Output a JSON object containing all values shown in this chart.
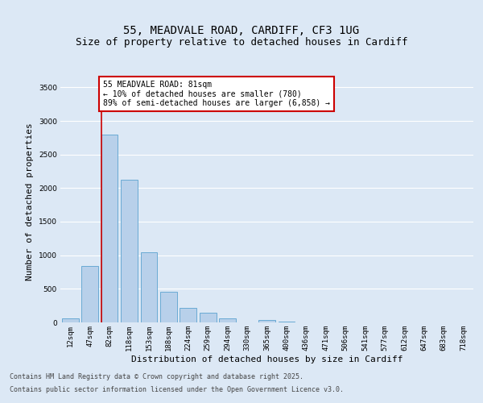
{
  "title_line1": "55, MEADVALE ROAD, CARDIFF, CF3 1UG",
  "title_line2": "Size of property relative to detached houses in Cardiff",
  "xlabel": "Distribution of detached houses by size in Cardiff",
  "ylabel": "Number of detached properties",
  "categories": [
    "12sqm",
    "47sqm",
    "82sqm",
    "118sqm",
    "153sqm",
    "188sqm",
    "224sqm",
    "259sqm",
    "294sqm",
    "330sqm",
    "365sqm",
    "400sqm",
    "436sqm",
    "471sqm",
    "506sqm",
    "541sqm",
    "577sqm",
    "612sqm",
    "647sqm",
    "683sqm",
    "718sqm"
  ],
  "values": [
    55,
    840,
    2800,
    2125,
    1040,
    455,
    215,
    148,
    65,
    0,
    35,
    18,
    0,
    0,
    0,
    0,
    0,
    0,
    0,
    0,
    0
  ],
  "bar_color": "#b8d0ea",
  "bar_edge_color": "#6aaad4",
  "vline_color": "#cc0000",
  "annotation_text": "55 MEADVALE ROAD: 81sqm\n← 10% of detached houses are smaller (780)\n89% of semi-detached houses are larger (6,858) →",
  "annotation_box_color": "#ffffff",
  "annotation_box_edge": "#cc0000",
  "ylim": [
    0,
    3600
  ],
  "yticks": [
    0,
    500,
    1000,
    1500,
    2000,
    2500,
    3000,
    3500
  ],
  "bg_color": "#dce8f5",
  "grid_color": "#ffffff",
  "footer_line1": "Contains HM Land Registry data © Crown copyright and database right 2025.",
  "footer_line2": "Contains public sector information licensed under the Open Government Licence v3.0.",
  "title_fontsize": 10,
  "subtitle_fontsize": 9,
  "axis_label_fontsize": 8,
  "tick_fontsize": 6.5,
  "annotation_fontsize": 7,
  "footer_fontsize": 6
}
